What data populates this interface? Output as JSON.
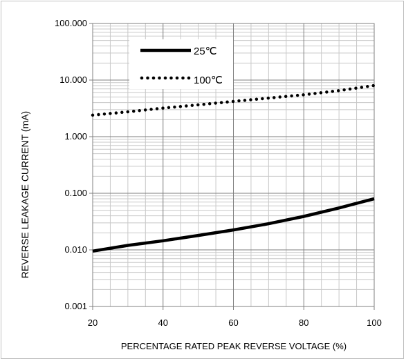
{
  "chart_data": {
    "type": "line",
    "xlabel": "PERCENTAGE RATED PEAK REVERSE VOLTAGE (%)",
    "ylabel": "REVERSE LEAKAGE CURRENT (mA)",
    "xlim": [
      20,
      100
    ],
    "ylim": [
      0.001,
      100
    ],
    "yscale": "log",
    "grid": true,
    "legend_position": "top-left",
    "xticks": [
      "20",
      "40",
      "60",
      "80",
      "100"
    ],
    "yticks": [
      "0.001",
      "0.010",
      "0.100",
      "1.000",
      "10.000",
      "100.000"
    ],
    "series": [
      {
        "name": "25℃",
        "style": "solid",
        "color": "#000000",
        "x": [
          20,
          30,
          40,
          50,
          60,
          70,
          80,
          90,
          100
        ],
        "y": [
          0.0095,
          0.012,
          0.0145,
          0.018,
          0.0225,
          0.029,
          0.039,
          0.055,
          0.08
        ]
      },
      {
        "name": "100℃",
        "style": "dotted",
        "color": "#000000",
        "x": [
          20,
          30,
          40,
          50,
          60,
          70,
          80,
          90,
          100
        ],
        "y": [
          2.4,
          2.75,
          3.2,
          3.65,
          4.2,
          4.8,
          5.5,
          6.5,
          8.0
        ]
      }
    ]
  }
}
